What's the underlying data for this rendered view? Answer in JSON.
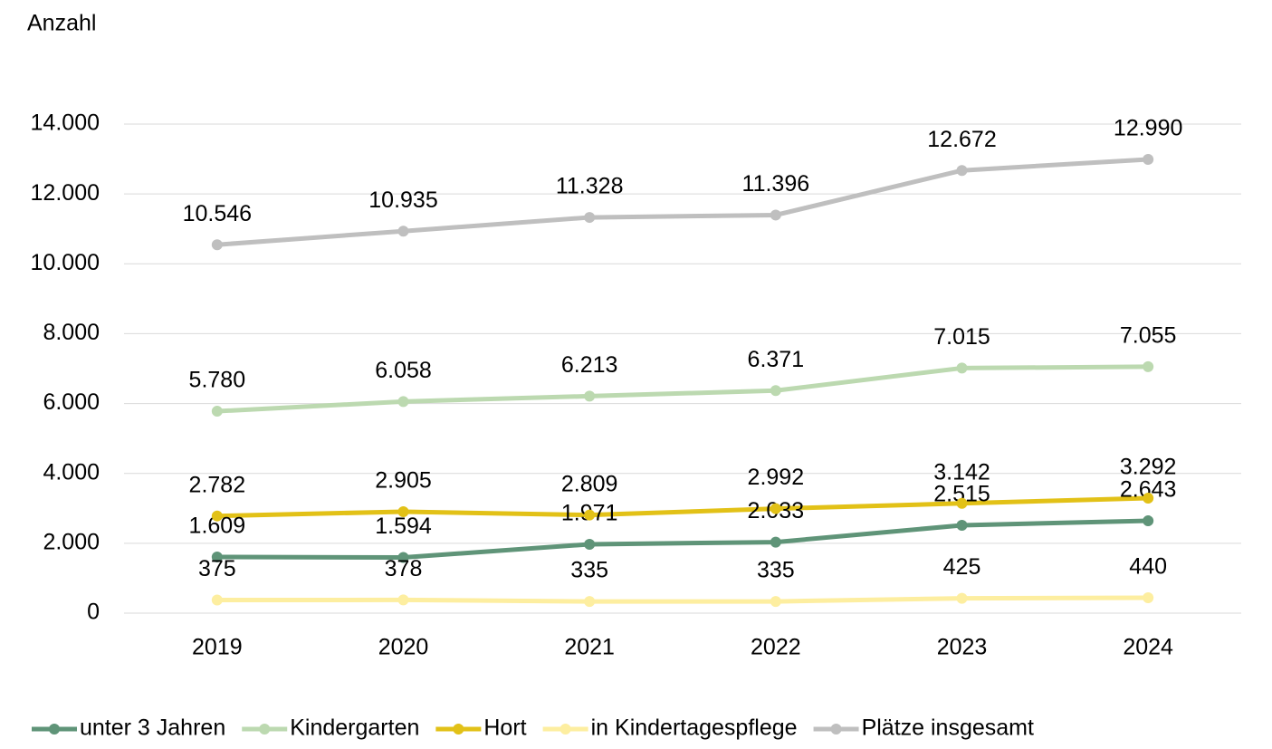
{
  "chart_data": {
    "type": "line",
    "ylabel": "Anzahl",
    "categories": [
      "2019",
      "2020",
      "2021",
      "2022",
      "2023",
      "2024"
    ],
    "series": [
      {
        "name": "unter 3 Jahren",
        "color": "#5f9478",
        "values": [
          1609,
          1594,
          1971,
          2033,
          2515,
          2643
        ],
        "value_labels": [
          "1.609",
          "1.594",
          "1.971",
          "2.033",
          "2.515",
          "2.643"
        ]
      },
      {
        "name": "Kindergarten",
        "color": "#bcd9b0",
        "values": [
          5780,
          6058,
          6213,
          6371,
          7015,
          7055
        ],
        "value_labels": [
          "5.780",
          "6.058",
          "6.213",
          "6.371",
          "7.015",
          "7.055"
        ]
      },
      {
        "name": "Hort",
        "color": "#e2c117",
        "values": [
          2782,
          2905,
          2809,
          2992,
          3142,
          3292
        ],
        "value_labels": [
          "2.782",
          "2.905",
          "2.809",
          "2.992",
          "3.142",
          "3.292"
        ]
      },
      {
        "name": "in Kindertagespflege",
        "color": "#fdeea0",
        "values": [
          375,
          378,
          335,
          335,
          425,
          440
        ]
      },
      {
        "name": "Plätze insgesamt",
        "color": "#bfbfbf",
        "values": [
          10546,
          10935,
          11328,
          11396,
          12672,
          12990
        ],
        "value_labels": [
          "10.546",
          "10.935",
          "11.328",
          "11.396",
          "12.672",
          "12.990"
        ]
      }
    ],
    "ylim": [
      0,
      14000
    ],
    "yticks": [
      0,
      {
        "value": 2000,
        "label": "2.000"
      },
      {
        "value": 4000,
        "label": "4.000"
      },
      {
        "value": 6000,
        "label": "6.000"
      },
      {
        "value": 8000,
        "label": "8.000"
      },
      {
        "value": 10000,
        "label": "10.000"
      },
      {
        "value": 12000,
        "label": "12.000"
      },
      {
        "value": 14000,
        "label": "14.000"
      }
    ],
    "grid": true,
    "legend": "bottom"
  }
}
